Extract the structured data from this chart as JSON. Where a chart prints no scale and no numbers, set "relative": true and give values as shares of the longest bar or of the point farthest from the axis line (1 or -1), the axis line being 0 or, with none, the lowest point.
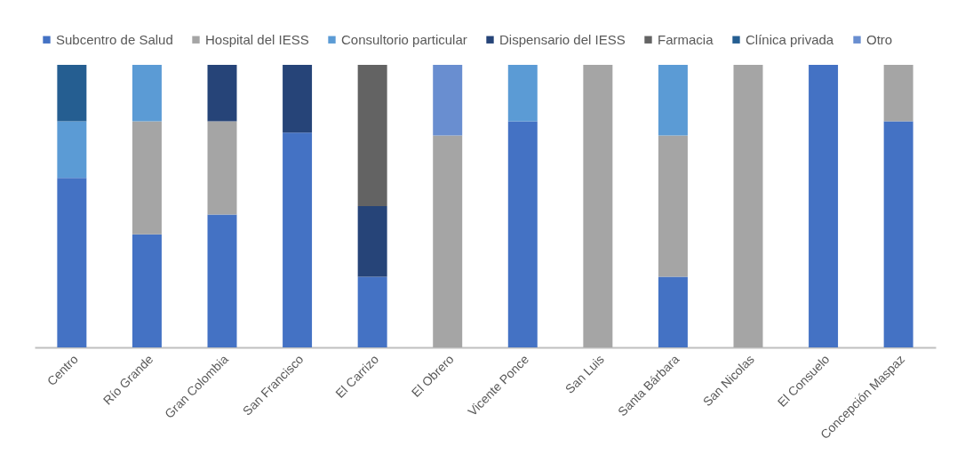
{
  "chart_data": {
    "type": "bar",
    "stacked": true,
    "relative": true,
    "legend": "top",
    "grid": false,
    "categories": [
      "Centro",
      "Río Grande",
      "Gran Colombia",
      "San Francisco",
      "El Carrizo",
      "El Obrero",
      "Vicente Ponce",
      "San Luis",
      "Santa Bárbara",
      "San Nicolas",
      "El Consuelo",
      "Concepción Maspaz"
    ],
    "series": [
      {
        "name": "Subcentro de Salud",
        "color": "#4472c4",
        "values": [
          0.6,
          0.4,
          0.47,
          0.76,
          0.25,
          null,
          0.8,
          null,
          0.25,
          null,
          1,
          0.8
        ]
      },
      {
        "name": "Hospital del IESS",
        "color": "#a5a5a5",
        "values": [
          null,
          0.4,
          0.33,
          null,
          null,
          0.75,
          null,
          1,
          0.5,
          1,
          null,
          0.2
        ]
      },
      {
        "name": "Consultorio particular",
        "color": "#5b9bd5",
        "values": [
          0.2,
          0.2,
          null,
          null,
          null,
          null,
          0.2,
          null,
          0.25,
          null,
          null,
          null
        ]
      },
      {
        "name": "Dispensario del IESS",
        "color": "#264478",
        "values": [
          null,
          null,
          0.2,
          0.24,
          0.25,
          null,
          null,
          null,
          null,
          null,
          null,
          null
        ]
      },
      {
        "name": "Farmacia",
        "color": "#636363",
        "values": [
          null,
          null,
          null,
          null,
          0.5,
          null,
          null,
          null,
          null,
          null,
          null,
          null
        ]
      },
      {
        "name": "Clínica privada",
        "color": "#255e91",
        "values": [
          0.2,
          null,
          null,
          null,
          null,
          null,
          null,
          null,
          null,
          null,
          null,
          null
        ]
      },
      {
        "name": "Otro",
        "color": "#698ed0",
        "values": [
          null,
          null,
          null,
          null,
          null,
          0.25,
          null,
          null,
          null,
          null,
          null,
          null
        ]
      }
    ]
  }
}
